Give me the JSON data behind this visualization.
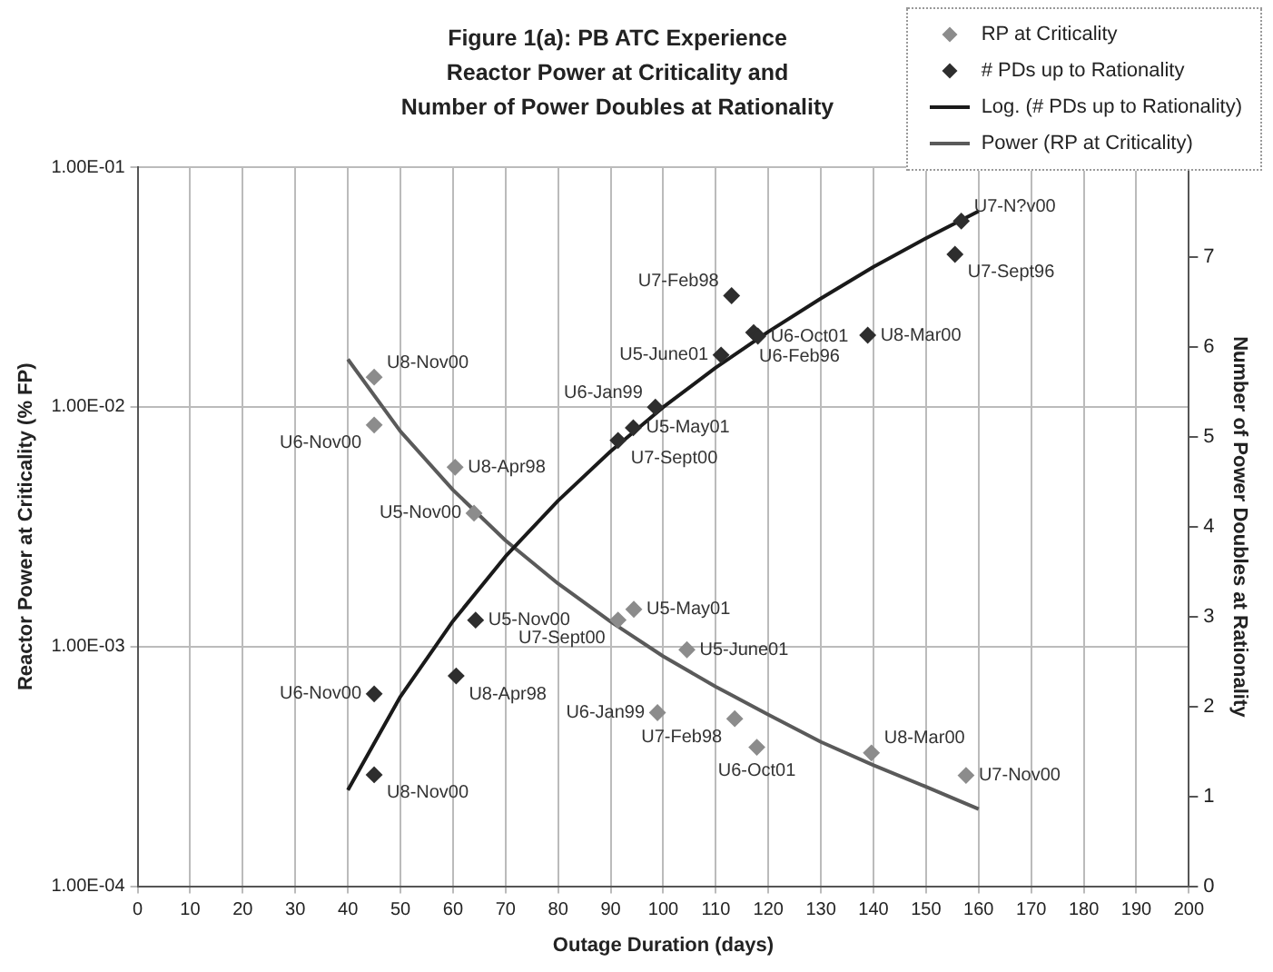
{
  "chart_data": {
    "type": "scatter",
    "title": "Figure 1(a):  PB ATC Experience\nReactor Power at Criticality and\nNumber of Power Doubles at Rationality",
    "xlabel": "Outage Duration (days)",
    "ylabel": "Reactor Power at Criticality (% FP)",
    "y2label": "Number of Power Doubles at Rationality",
    "xlim": [
      0,
      200
    ],
    "xticks": [
      0,
      10,
      20,
      30,
      40,
      50,
      60,
      70,
      80,
      90,
      100,
      110,
      120,
      130,
      140,
      150,
      160,
      170,
      180,
      190,
      200
    ],
    "ylim": [
      0.0001,
      0.1
    ],
    "yticks": [
      {
        "value": 0.0001,
        "label": "1.00E-04"
      },
      {
        "value": 0.001,
        "label": "1.00E-03"
      },
      {
        "value": 0.01,
        "label": "1.00E-02"
      },
      {
        "value": 0.1,
        "label": "1.00E-01"
      }
    ],
    "y2lim": [
      0,
      8
    ],
    "y2ticks": [
      0,
      1,
      2,
      3,
      4,
      5,
      6,
      7
    ],
    "log": "y",
    "grid": true,
    "legend": "top right",
    "series": [
      {
        "name": "RP at Criticality",
        "marker": "diamond",
        "color": "#8c8c8c",
        "x": [
          45,
          45,
          60.4,
          64,
          91.4,
          94.4,
          98.9,
          104.5,
          113.6,
          117.8,
          139.6,
          157.6
        ],
        "values": [
          0.0133,
          0.0084,
          0.0056,
          0.0036,
          0.00129,
          0.00143,
          0.00053,
          0.00097,
          0.0005,
          0.00038,
          0.00036,
          0.00029
        ],
        "value_labels": [
          "U8-Nov00",
          "U6-Nov00",
          "U8-Apr98",
          "U5-Nov00",
          "U7-Sept00",
          "U5-May01",
          "U6-Jan99",
          "U5-June01",
          "U7-Feb98",
          "U6-Oct01",
          "U8-Mar00",
          "U7-Nov00"
        ]
      },
      {
        "name": "# PDs up to Rationality",
        "marker": "diamond",
        "axis": "y2",
        "color": "#2e2e2e",
        "x": [
          45,
          45,
          60.6,
          64.3,
          91.4,
          94.3,
          98.5,
          111,
          113,
          117.2,
          118,
          138.9,
          155.5,
          156.7
        ],
        "values": [
          1.24,
          2.14,
          2.34,
          2.96,
          4.96,
          5.1,
          5.33,
          5.91,
          6.57,
          6.16,
          6.12,
          6.13,
          7.03,
          7.4
        ],
        "value_labels": [
          "U8-Nov00",
          "U6-Nov00",
          "U8-Apr98",
          "U5-Nov00",
          "U7-Sept00",
          "U5-May01",
          "U6-Jan99",
          "U5-June01",
          "U7-Feb98",
          "U6-Feb96",
          "U6-Oct01",
          "U8-Mar00",
          "U7-Sept96",
          "U7-N?v00"
        ]
      },
      {
        "name": "Log. (# PDs up to Rationality)",
        "type": "line",
        "marker": "none",
        "axis": "y2",
        "color": "#1a1a1a",
        "x": [
          40,
          50,
          60,
          70,
          80,
          90,
          100,
          110,
          120,
          130,
          140,
          150,
          160
        ],
        "values": [
          1.07,
          2.11,
          2.95,
          3.67,
          4.29,
          4.84,
          5.33,
          5.77,
          6.17,
          6.54,
          6.89,
          7.21,
          7.51
        ]
      },
      {
        "name": "Power (RP at Criticality)",
        "type": "line",
        "marker": "none",
        "color": "#5a5a5a",
        "x": [
          40,
          50,
          60,
          70,
          80,
          90,
          100,
          110,
          120,
          130,
          140,
          150,
          160
        ],
        "values": [
          0.0158,
          0.0079,
          0.0045,
          0.00277,
          0.00183,
          0.00127,
          0.00091,
          0.00068,
          0.00052,
          0.0004,
          0.00032,
          0.00026,
          0.00021
        ]
      }
    ]
  }
}
